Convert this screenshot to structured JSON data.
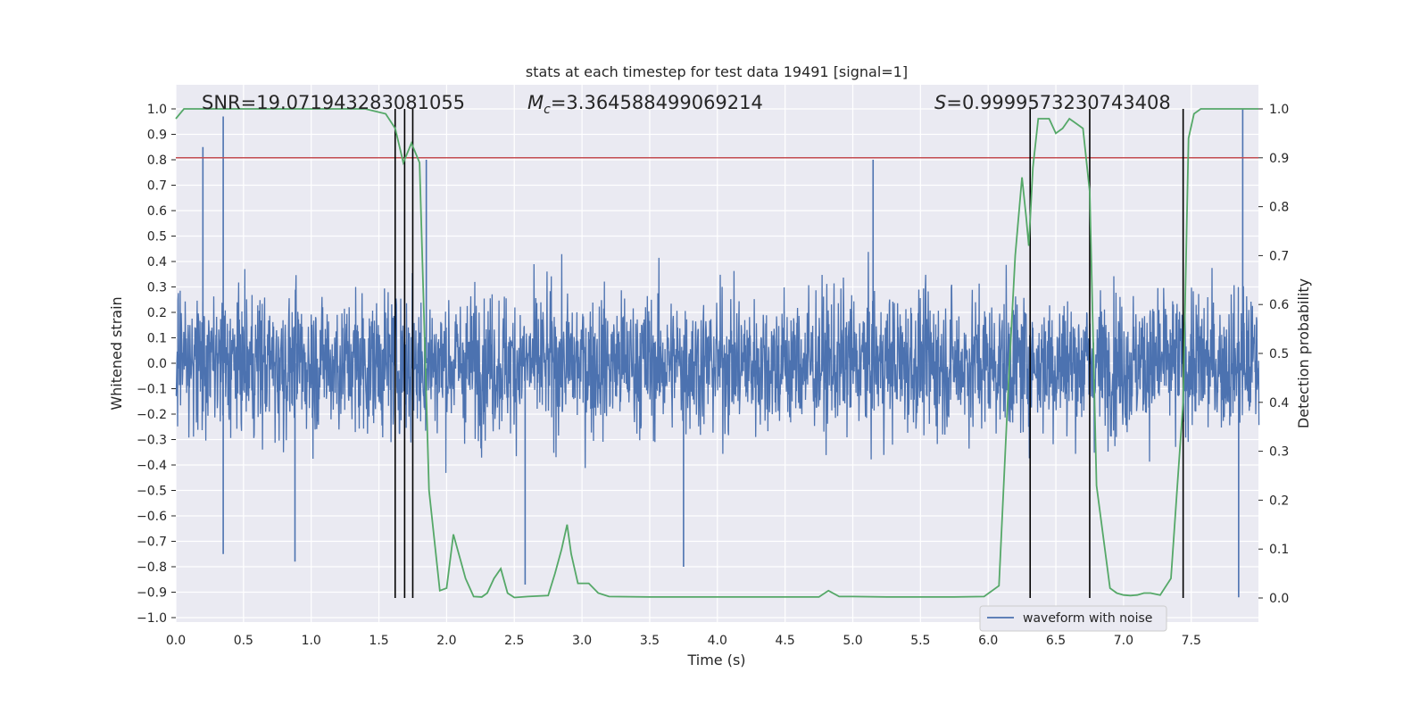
{
  "chart_data": {
    "type": "line",
    "title": "stats at each timestep for test data 19491 [signal=1]",
    "xlabel": "Time (s)",
    "ylabel": "Whitened strain",
    "ylabel_right": "Detection probability",
    "xlim": [
      0.0,
      8.0
    ],
    "ylim": [
      -1.05,
      1.1
    ],
    "ylim_right": [
      -0.05,
      1.05
    ],
    "x_ticks": [
      "0.0",
      "0.5",
      "1.0",
      "1.5",
      "2.0",
      "2.5",
      "3.0",
      "3.5",
      "4.0",
      "4.5",
      "5.0",
      "5.5",
      "6.0",
      "6.5",
      "7.0",
      "7.5"
    ],
    "y_ticks": [
      "1.0",
      "0.9",
      "0.8",
      "0.7",
      "0.6",
      "0.5",
      "0.4",
      "0.3",
      "0.2",
      "0.1",
      "0.0",
      "−0.1",
      "−0.2",
      "−0.3",
      "−0.4",
      "−0.5",
      "−0.6",
      "−0.7",
      "−0.8",
      "−0.9",
      "−1.0"
    ],
    "y_ticks_right": [
      "1.0",
      "0.9",
      "0.8",
      "0.7",
      "0.6",
      "0.5",
      "0.4",
      "0.3",
      "0.2",
      "0.1",
      "0.0"
    ],
    "grid": true,
    "annotations": {
      "snr": "SNR=19.071943283081055",
      "mc_symbol": "M",
      "mc_sub": "c",
      "mc_value": "=3.364588499069214",
      "s_symbol": "S",
      "s_value": "=0.9999573230743408"
    },
    "threshold": 0.9,
    "vlines": [
      1.62,
      1.69,
      1.75,
      6.31,
      6.75,
      7.44
    ],
    "legend": {
      "label": "waveform with noise",
      "position": "lower-right"
    },
    "series": [
      {
        "name": "waveform with noise",
        "color": "#4c72b0",
        "kind": "noise",
        "amplitude_typical": 0.35,
        "notable_peaks": [
          {
            "x": 0.2,
            "y": 0.85
          },
          {
            "x": 0.35,
            "y": 0.97
          },
          {
            "x": 0.35,
            "y": -0.75
          },
          {
            "x": 0.88,
            "y": -0.78
          },
          {
            "x": 1.85,
            "y": 0.8
          },
          {
            "x": 2.58,
            "y": -0.87
          },
          {
            "x": 3.75,
            "y": -0.8
          },
          {
            "x": 5.15,
            "y": 0.8
          },
          {
            "x": 7.88,
            "y": 1.0
          },
          {
            "x": 7.85,
            "y": -0.92
          }
        ]
      },
      {
        "name": "detection probability",
        "color": "#55a868",
        "axis": "right",
        "x": [
          0.0,
          0.06,
          0.5,
          1.0,
          1.4,
          1.55,
          1.62,
          1.68,
          1.74,
          1.8,
          1.87,
          1.95,
          2.0,
          2.05,
          2.1,
          2.14,
          2.2,
          2.26,
          2.3,
          2.35,
          2.4,
          2.45,
          2.5,
          2.6,
          2.75,
          2.8,
          2.85,
          2.89,
          2.92,
          2.97,
          3.05,
          3.12,
          3.2,
          3.5,
          3.75,
          4.0,
          4.25,
          4.5,
          4.75,
          4.82,
          4.9,
          5.0,
          5.25,
          5.5,
          5.75,
          5.97,
          6.08,
          6.15,
          6.2,
          6.25,
          6.28,
          6.3,
          6.33,
          6.37,
          6.45,
          6.5,
          6.55,
          6.6,
          6.65,
          6.7,
          6.75,
          6.8,
          6.9,
          6.95,
          7.0,
          7.05,
          7.1,
          7.15,
          7.2,
          7.27,
          7.35,
          7.44,
          7.48,
          7.52,
          7.57,
          7.65,
          7.75,
          8.0
        ],
        "values": [
          0.98,
          1.0,
          1.0,
          1.0,
          1.0,
          0.99,
          0.96,
          0.89,
          0.93,
          0.89,
          0.22,
          0.015,
          0.02,
          0.13,
          0.08,
          0.04,
          0.003,
          0.002,
          0.01,
          0.04,
          0.06,
          0.01,
          0.001,
          0.003,
          0.005,
          0.05,
          0.1,
          0.15,
          0.09,
          0.03,
          0.03,
          0.01,
          0.003,
          0.002,
          0.002,
          0.002,
          0.002,
          0.002,
          0.002,
          0.015,
          0.003,
          0.003,
          0.002,
          0.002,
          0.002,
          0.003,
          0.025,
          0.44,
          0.7,
          0.86,
          0.78,
          0.72,
          0.88,
          0.98,
          0.98,
          0.95,
          0.96,
          0.98,
          0.97,
          0.96,
          0.83,
          0.23,
          0.02,
          0.01,
          0.006,
          0.005,
          0.006,
          0.01,
          0.01,
          0.006,
          0.04,
          0.4,
          0.94,
          0.99,
          1.0,
          1.0,
          1.0,
          1.0
        ]
      },
      {
        "name": "threshold line",
        "color": "#c44e52",
        "axis": "right",
        "values": [
          0.9
        ]
      }
    ]
  }
}
